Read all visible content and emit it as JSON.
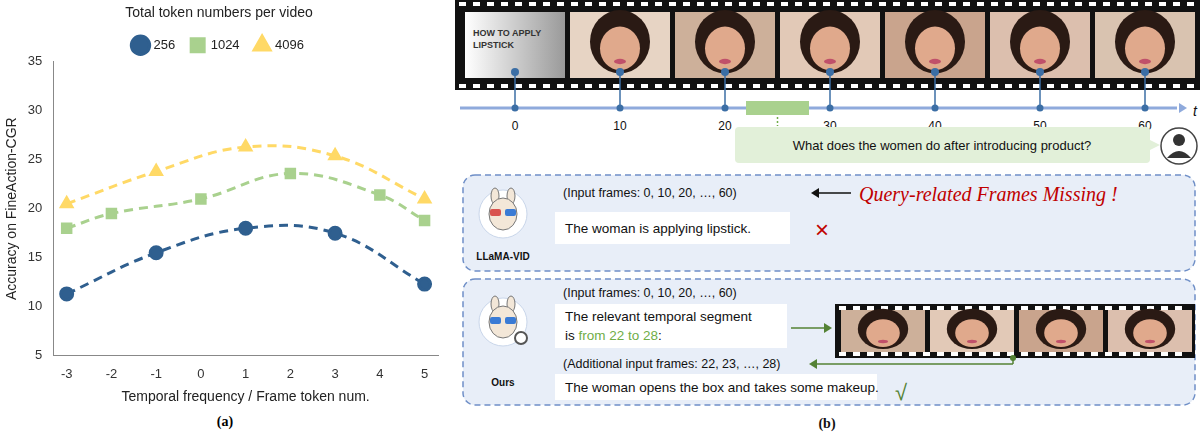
{
  "chart_data": {
    "type": "line",
    "x_label": "Temporal frequency / Frame token num.",
    "y_label": "Accuracy on FineAction-CGR",
    "legend_title": "Total token numbers per video",
    "legend": "top",
    "grid": false,
    "xlim": [
      -3.3,
      5.3
    ],
    "xticks": [
      -3,
      -2,
      -1,
      0,
      1,
      2,
      3,
      4,
      5
    ],
    "ylim": [
      5,
      35
    ],
    "yticks": [
      5,
      10,
      15,
      20,
      25,
      30,
      35
    ],
    "series": [
      {
        "name": "256",
        "color": "#2f5f8f",
        "marker": "circle",
        "line_style": "dashed",
        "x": [
          -3,
          -1,
          1,
          3,
          5
        ],
        "values": [
          11.3,
          15.5,
          18,
          17.5,
          12.3
        ]
      },
      {
        "name": "1024",
        "color": "#a9d18e",
        "marker": "square",
        "line_style": "dashed",
        "x": [
          -3,
          -2,
          0,
          2,
          4,
          5
        ],
        "values": [
          18,
          19.5,
          21,
          23.6,
          21.4,
          18.8
        ]
      },
      {
        "name": "4096",
        "color": "#ffd966",
        "marker": "triangle",
        "line_style": "dashed",
        "x": [
          -3,
          -1,
          1,
          3,
          5
        ],
        "values": [
          20.5,
          23.8,
          26.3,
          25.4,
          21
        ]
      }
    ]
  },
  "panel_labels": [
    "(a)",
    "(b)"
  ],
  "diagram": {
    "title_frame_text": [
      "HOW TO APPLY",
      "LIPSTICK"
    ],
    "timeline": {
      "ticks": [
        0,
        10,
        20,
        30,
        40,
        50,
        60
      ],
      "axis_label": "t",
      "segment": [
        22,
        28
      ]
    },
    "question": "What does the women do after introducing product?",
    "baseline": {
      "name": "LLaMA-VID",
      "input": "(Input frames: 0, 10, 20, …, 60)",
      "warning": "Query-related Frames Missing !",
      "answer": "The woman is applying lipstick.",
      "verdict": "×"
    },
    "ours": {
      "name": "Ours",
      "input": "(Input frames: 0, 10, 20, …, 60)",
      "reasoning_lines": [
        [
          {
            "text": "The relevant temporal segment"
          }
        ],
        [
          {
            "text": "is "
          },
          {
            "text": "from 22 to 28",
            "highlight": true
          },
          {
            "text": ":"
          }
        ]
      ],
      "additional": "(Additional input frames: 22, 23, …, 28)",
      "answer": "The woman opens the box and takes some makeup.",
      "verdict": "√"
    }
  }
}
